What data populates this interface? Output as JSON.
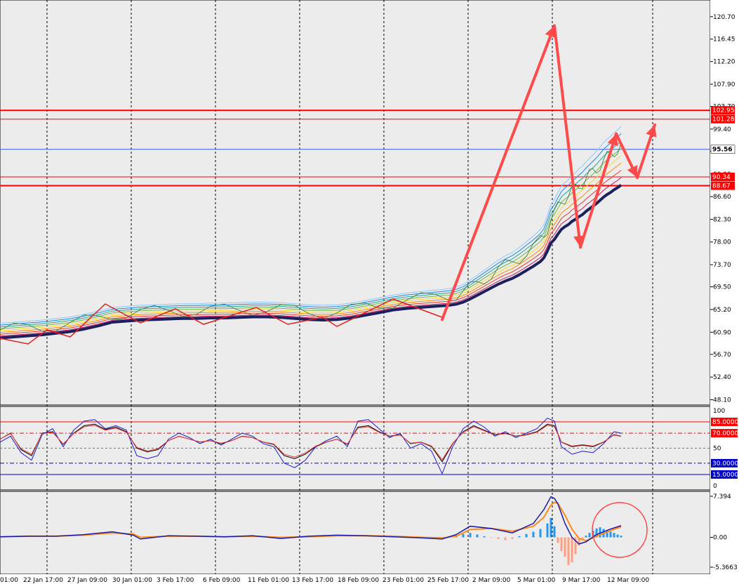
{
  "chart_data": {
    "type": "line",
    "title": "",
    "price_panel": {
      "ylim": [
        47.5,
        122.0
      ],
      "ticks": [
        "120.70",
        "116.45",
        "112.20",
        "107.90",
        "103.70",
        "99.40",
        "95.20",
        "90.90",
        "86.60",
        "82.30",
        "78.00",
        "73.70",
        "69.50",
        "65.20",
        "60.90",
        "56.70",
        "52.40",
        "48.10"
      ],
      "last_price": "95.56",
      "levels": [
        {
          "label": "102.95",
          "value": 102.95,
          "color": "#ff0000"
        },
        {
          "label": "101.28",
          "value": 101.28,
          "color": "#ff0000"
        },
        {
          "label": "90.34",
          "value": 90.34,
          "color": "#ff0000"
        },
        {
          "label": "88.67",
          "value": 88.67,
          "color": "#ff0000"
        }
      ],
      "series": [
        {
          "x": [
            0,
            20,
            40,
            60,
            80,
            100,
            120,
            140,
            160,
            180,
            200,
            220,
            240,
            260,
            280,
            300,
            320,
            340,
            360,
            380,
            400,
            420,
            440,
            460,
            480,
            500,
            520,
            540,
            560,
            580,
            600,
            620,
            640,
            650,
            660,
            670,
            680,
            690,
            700,
            710,
            720,
            730,
            740,
            750,
            760,
            770,
            775,
            780,
            785,
            790,
            795,
            800,
            805,
            810,
            815,
            820,
            825,
            830,
            835,
            840,
            845,
            850,
            855,
            860,
            865,
            870,
            875,
            880,
            885
          ],
          "y": [
            59.8,
            60.0,
            60.2,
            60.4,
            60.7,
            61.0,
            61.5,
            62.1,
            62.8,
            63.0,
            63.2,
            63.3,
            63.4,
            63.5,
            63.5,
            63.6,
            63.6,
            63.7,
            63.8,
            63.8,
            63.7,
            63.5,
            63.3,
            63.2,
            63.3,
            63.6,
            64.1,
            64.6,
            65.1,
            65.4,
            65.6,
            65.8,
            66.0,
            66.2,
            66.6,
            67.2,
            67.9,
            68.6,
            69.3,
            70.0,
            70.6,
            71.1,
            71.8,
            72.6,
            73.4,
            74.3,
            75.0,
            76.3,
            77.8,
            78.5,
            79.5,
            80.4,
            80.9,
            81.3,
            81.9,
            82.3,
            82.8,
            83.2,
            83.8,
            84.3,
            84.8,
            85.3,
            85.9,
            86.5,
            87.0,
            87.4,
            87.9,
            88.3,
            88.8
          ]
        }
      ],
      "pattern_points": [
        {
          "x": 630,
          "y": 63.3
        },
        {
          "x": 790,
          "y": 119.0
        },
        {
          "x": 827,
          "y": 77.0
        },
        {
          "x": 878,
          "y": 98.5
        },
        {
          "x": 908,
          "y": 90.2
        },
        {
          "x": 933,
          "y": 100.2
        }
      ]
    },
    "stoch_panel": {
      "levels": [
        {
          "label": "85.0000",
          "value": 85
        },
        {
          "label": "70.0000",
          "value": 70
        },
        {
          "label": "30.0000",
          "value": 30
        },
        {
          "label": "15.0000",
          "value": 15
        }
      ],
      "ticks": [
        "100",
        "50",
        "0"
      ],
      "series": [
        {
          "x": [
            0,
            15,
            30,
            45,
            60,
            75,
            90,
            105,
            120,
            135,
            150,
            165,
            180,
            195,
            210,
            225,
            240,
            255,
            270,
            285,
            300,
            315,
            330,
            345,
            360,
            375,
            390,
            405,
            420,
            435,
            450,
            465,
            480,
            495,
            510,
            525,
            540,
            555,
            570,
            585,
            600,
            615,
            630,
            645,
            660,
            675,
            690,
            705,
            720,
            735,
            750,
            765,
            780,
            790,
            800,
            815,
            830,
            845,
            860,
            875,
            885
          ],
          "y": [
            62,
            70,
            48,
            40,
            70,
            72,
            55,
            70,
            80,
            82,
            75,
            78,
            72,
            50,
            45,
            48,
            60,
            66,
            62,
            58,
            60,
            56,
            60,
            66,
            64,
            58,
            55,
            40,
            36,
            42,
            52,
            58,
            62,
            55,
            78,
            80,
            72,
            66,
            68,
            56,
            58,
            52,
            32,
            56,
            72,
            80,
            74,
            68,
            70,
            66,
            68,
            72,
            82,
            80,
            58,
            52,
            54,
            52,
            58,
            68,
            66
          ]
        },
        {
          "x": [
            0,
            15,
            30,
            45,
            60,
            75,
            90,
            105,
            120,
            135,
            150,
            165,
            180,
            195,
            210,
            225,
            240,
            255,
            270,
            285,
            300,
            315,
            330,
            345,
            360,
            375,
            390,
            405,
            420,
            435,
            450,
            465,
            480,
            495,
            510,
            525,
            540,
            555,
            570,
            585,
            600,
            615,
            630,
            645,
            660,
            675,
            690,
            705,
            720,
            735,
            750,
            765,
            780,
            790,
            800,
            815,
            830,
            845,
            860,
            875,
            885
          ],
          "y": [
            58,
            66,
            44,
            34,
            68,
            76,
            52,
            74,
            86,
            88,
            76,
            80,
            74,
            40,
            36,
            40,
            62,
            70,
            64,
            56,
            62,
            54,
            62,
            70,
            66,
            56,
            52,
            30,
            24,
            34,
            52,
            60,
            66,
            52,
            86,
            88,
            76,
            64,
            70,
            50,
            56,
            46,
            16,
            52,
            76,
            86,
            78,
            66,
            72,
            64,
            70,
            76,
            90,
            86,
            52,
            42,
            46,
            44,
            56,
            72,
            70
          ]
        }
      ]
    },
    "macd_panel": {
      "ticks": [
        "7.394",
        "0.00",
        "-5.3663"
      ],
      "ylim": [
        -5.3663,
        7.394
      ],
      "macd": {
        "x": [
          0,
          40,
          80,
          120,
          160,
          190,
          200,
          240,
          280,
          320,
          360,
          400,
          440,
          480,
          520,
          560,
          600,
          630,
          650,
          670,
          700,
          730,
          760,
          775,
          785,
          790,
          795,
          805,
          815,
          825,
          835,
          850,
          870,
          885
        ],
        "y": [
          0.1,
          0.2,
          0.2,
          0.5,
          1.0,
          0.4,
          -0.3,
          0.3,
          0.2,
          0.1,
          0.3,
          -0.2,
          0.2,
          0.4,
          0.3,
          0.1,
          -0.1,
          -0.3,
          0.5,
          2.0,
          1.6,
          0.8,
          2.5,
          5.0,
          7.3,
          7.0,
          6.0,
          2.5,
          0.0,
          -1.2,
          -0.8,
          0.5,
          1.5,
          2.1
        ]
      },
      "signal": {
        "x": [
          0,
          40,
          80,
          120,
          160,
          190,
          200,
          240,
          280,
          320,
          360,
          400,
          440,
          480,
          520,
          560,
          600,
          630,
          650,
          670,
          700,
          730,
          760,
          775,
          785,
          790,
          795,
          805,
          815,
          825,
          835,
          850,
          870,
          885
        ],
        "y": [
          0.1,
          0.2,
          0.2,
          0.4,
          0.8,
          0.6,
          0.0,
          0.2,
          0.2,
          0.1,
          0.2,
          0.0,
          0.1,
          0.3,
          0.3,
          0.2,
          0.0,
          -0.1,
          0.2,
          1.4,
          1.6,
          1.1,
          2.0,
          3.6,
          5.8,
          6.3,
          6.1,
          4.0,
          1.5,
          -0.2,
          -0.6,
          0.2,
          1.2,
          1.9
        ]
      },
      "histogram": {
        "x": [
          640,
          650,
          660,
          670,
          680,
          690,
          700,
          710,
          720,
          730,
          740,
          750,
          760,
          770,
          780,
          785,
          790,
          795,
          800,
          805,
          810,
          815,
          820,
          825,
          830,
          835,
          840,
          845,
          850,
          855,
          860,
          865,
          870,
          875,
          880,
          885
        ],
        "y": [
          0.2,
          0.4,
          0.6,
          0.8,
          0.5,
          0.2,
          -0.1,
          -0.3,
          -0.5,
          -0.3,
          0.2,
          0.6,
          1.0,
          1.5,
          2.5,
          3.5,
          2.0,
          -1.0,
          -2.5,
          -3.5,
          -5.0,
          -4.5,
          -3.0,
          -1.5,
          -0.5,
          0.3,
          0.8,
          1.2,
          1.6,
          1.8,
          1.5,
          1.2,
          1.0,
          0.8,
          0.5,
          0.3
        ]
      }
    },
    "x_ticks": [
      "01:00",
      "22 Jan 17:00",
      "27 Jan 09:00",
      "30 Jan 01:00",
      "3 Feb 17:00",
      "6 Feb 09:00",
      "11 Feb 01:00",
      "13 Feb 17:00",
      "18 Feb 09:00",
      "23 Feb 01:00",
      "25 Feb 17:00",
      "2 Mar 09:00",
      "5 Mar 01:00",
      "9 Mar 17:00",
      "12 Mar 09:00"
    ],
    "grid": true
  }
}
